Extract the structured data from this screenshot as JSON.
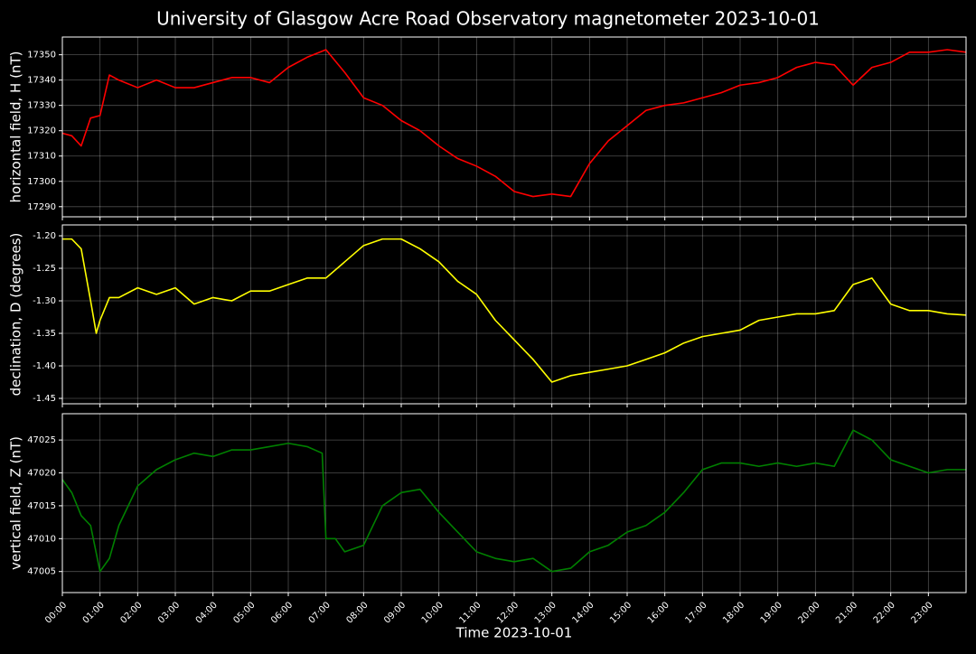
{
  "chart_data": [
    {
      "type": "line",
      "title": "University of Glasgow Acre Road Observatory magnetometer 2023-10-01",
      "ylabel": "horizontal field, H (nT)",
      "color": "#ff0000",
      "grid": true,
      "xlim": [
        0,
        24
      ],
      "ylim": [
        17286,
        17357
      ],
      "yticks": [
        17290,
        17300,
        17310,
        17320,
        17330,
        17340,
        17350
      ],
      "x": [
        0,
        0.25,
        0.5,
        0.75,
        1,
        1.25,
        1.5,
        2,
        2.5,
        3,
        3.5,
        4,
        4.5,
        5,
        5.5,
        6,
        6.5,
        7,
        7.5,
        8,
        8.5,
        9,
        9.5,
        10,
        10.5,
        11,
        11.5,
        12,
        12.5,
        13,
        13.5,
        14,
        14.5,
        15,
        15.5,
        16,
        16.5,
        17,
        17.5,
        18,
        18.5,
        19,
        19.5,
        20,
        20.5,
        21,
        21.5,
        22,
        22.5,
        23,
        23.5,
        24
      ],
      "values": [
        17319,
        17318,
        17314,
        17325,
        17326,
        17342,
        17340,
        17337,
        17340,
        17337,
        17337,
        17339,
        17341,
        17341,
        17339,
        17345,
        17349,
        17352,
        17343,
        17333,
        17330,
        17324,
        17320,
        17314,
        17309,
        17306,
        17302,
        17296,
        17294,
        17295,
        17294,
        17307,
        17316,
        17322,
        17328,
        17330,
        17331,
        17333,
        17335,
        17338,
        17339,
        17341,
        17345,
        17347,
        17346,
        17338,
        17345,
        17347,
        17351,
        17351,
        17352,
        17351
      ]
    },
    {
      "type": "line",
      "ylabel": "declination, D (degrees)",
      "color": "#ffff00",
      "grid": true,
      "xlim": [
        0,
        24
      ],
      "ylim": [
        -1.4583,
        -1.1833
      ],
      "yticks": [
        {
          "value": -1.2,
          "label": "-1.20"
        },
        -1.25,
        {
          "value": -1.3,
          "label": "-1.30"
        },
        -1.35,
        {
          "value": -1.4,
          "label": "-1.40"
        },
        -1.45
      ],
      "x": [
        0,
        0.25,
        0.5,
        0.75,
        0.9,
        1,
        1.25,
        1.5,
        2,
        2.5,
        3,
        3.5,
        4,
        4.5,
        5,
        5.5,
        6,
        6.5,
        7,
        7.5,
        8,
        8.5,
        9,
        9.5,
        10,
        10.5,
        11,
        11.5,
        12,
        12.5,
        13,
        13.5,
        14,
        14.5,
        15,
        15.5,
        16,
        16.5,
        17,
        17.5,
        18,
        18.5,
        19,
        19.5,
        20,
        20.5,
        21,
        21.5,
        22,
        22.5,
        23,
        23.5,
        24
      ],
      "values": [
        -1.205,
        -1.205,
        -1.22,
        -1.3,
        -1.35,
        -1.33,
        -1.295,
        -1.295,
        -1.28,
        -1.29,
        -1.28,
        -1.305,
        -1.295,
        -1.3,
        -1.285,
        -1.285,
        -1.275,
        -1.265,
        -1.265,
        -1.24,
        -1.215,
        -1.205,
        -1.205,
        -1.22,
        -1.24,
        -1.27,
        -1.29,
        -1.33,
        -1.36,
        -1.39,
        -1.425,
        -1.415,
        -1.41,
        -1.405,
        -1.4,
        -1.39,
        -1.38,
        -1.365,
        -1.355,
        -1.35,
        -1.345,
        -1.33,
        -1.325,
        -1.32,
        -1.32,
        -1.315,
        -1.275,
        -1.265,
        -1.305,
        -1.315,
        -1.315,
        -1.32,
        -1.322
      ]
    },
    {
      "type": "line",
      "ylabel": "vertical field, Z (nT)",
      "xlabel": "Time 2023-10-01",
      "color": "#008000",
      "grid": true,
      "xlim": [
        0,
        24
      ],
      "ylim": [
        47001.8,
        47029
      ],
      "yticks": [
        47005,
        47010,
        47015,
        47020,
        47025
      ],
      "xticks": [
        {
          "value": 0,
          "label": "00:00"
        },
        {
          "value": 1,
          "label": "01:00"
        },
        {
          "value": 2,
          "label": "02:00"
        },
        {
          "value": 3,
          "label": "03:00"
        },
        {
          "value": 4,
          "label": "04:00"
        },
        {
          "value": 5,
          "label": "05:00"
        },
        {
          "value": 6,
          "label": "06:00"
        },
        {
          "value": 7,
          "label": "07:00"
        },
        {
          "value": 8,
          "label": "08:00"
        },
        {
          "value": 9,
          "label": "09:00"
        },
        {
          "value": 10,
          "label": "10:00"
        },
        {
          "value": 11,
          "label": "11:00"
        },
        {
          "value": 12,
          "label": "12:00"
        },
        {
          "value": 13,
          "label": "13:00"
        },
        {
          "value": 14,
          "label": "14:00"
        },
        {
          "value": 15,
          "label": "15:00"
        },
        {
          "value": 16,
          "label": "16:00"
        },
        {
          "value": 17,
          "label": "17:00"
        },
        {
          "value": 18,
          "label": "18:00"
        },
        {
          "value": 19,
          "label": "19:00"
        },
        {
          "value": 20,
          "label": "20:00"
        },
        {
          "value": 21,
          "label": "21:00"
        },
        {
          "value": 22,
          "label": "22:00"
        },
        {
          "value": 23,
          "label": "23:00"
        }
      ],
      "x": [
        0,
        0.25,
        0.5,
        0.75,
        1,
        1.25,
        1.5,
        2,
        2.5,
        3,
        3.5,
        4,
        4.5,
        5,
        5.5,
        6,
        6.5,
        6.9,
        7,
        7.25,
        7.5,
        8,
        8.5,
        9,
        9.5,
        10,
        10.5,
        11,
        11.5,
        12,
        12.5,
        13,
        13.5,
        14,
        14.5,
        15,
        15.5,
        16,
        16.5,
        17,
        17.5,
        18,
        18.5,
        19,
        19.5,
        20,
        20.5,
        21,
        21.5,
        22,
        22.5,
        23,
        23.5,
        24
      ],
      "values": [
        47019,
        47017,
        47013.5,
        47012,
        47005,
        47007,
        47012,
        47018,
        47020.5,
        47022,
        47023,
        47022.5,
        47023.5,
        47023.5,
        47024,
        47024.5,
        47024,
        47023,
        47010,
        47010,
        47008,
        47009,
        47015,
        47017,
        47017.5,
        47014,
        47011,
        47008,
        47007,
        47006.5,
        47007,
        47005,
        47005.5,
        47008,
        47009,
        47011,
        47012,
        47014,
        47017,
        47020.5,
        47021.5,
        47021.5,
        47021,
        47021.5,
        47021,
        47021.5,
        47021,
        47026.5,
        47025,
        47022,
        47021,
        47020,
        47020.5,
        47020.5
      ]
    }
  ]
}
